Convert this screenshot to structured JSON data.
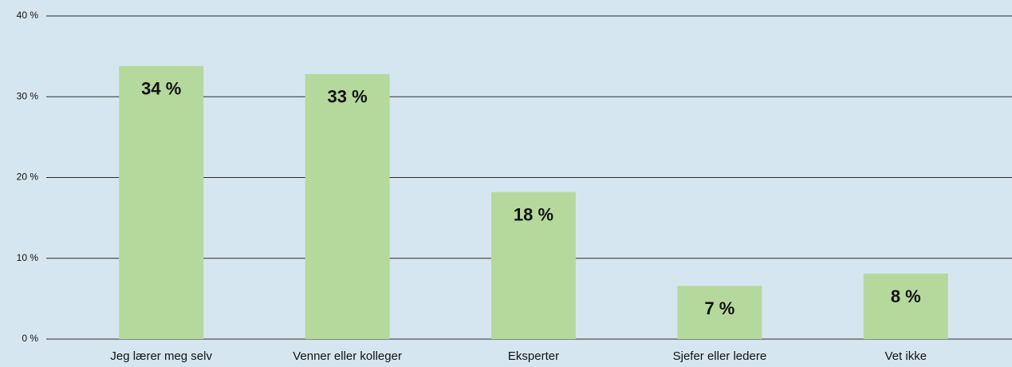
{
  "chart_data": {
    "type": "bar",
    "categories": [
      "Jeg lærer meg selv",
      "Venner eller kolleger",
      "Eksperter",
      "Sjefer eller ledere",
      "Vet ikke"
    ],
    "values": [
      33.8,
      32.8,
      18.2,
      6.6,
      8.1
    ],
    "value_labels": [
      "34 %",
      "33 %",
      "18 %",
      "7 %",
      "8 %"
    ],
    "color": "#b5d99c",
    "ylim": [
      0,
      40
    ],
    "yticks": [
      {
        "value": 0,
        "label": "0 %"
      },
      {
        "value": 10,
        "label": "10 %"
      },
      {
        "value": 20,
        "label": "20 %"
      },
      {
        "value": 30,
        "label": "30 %"
      },
      {
        "value": 40,
        "label": "40 %"
      }
    ],
    "grid": true
  }
}
